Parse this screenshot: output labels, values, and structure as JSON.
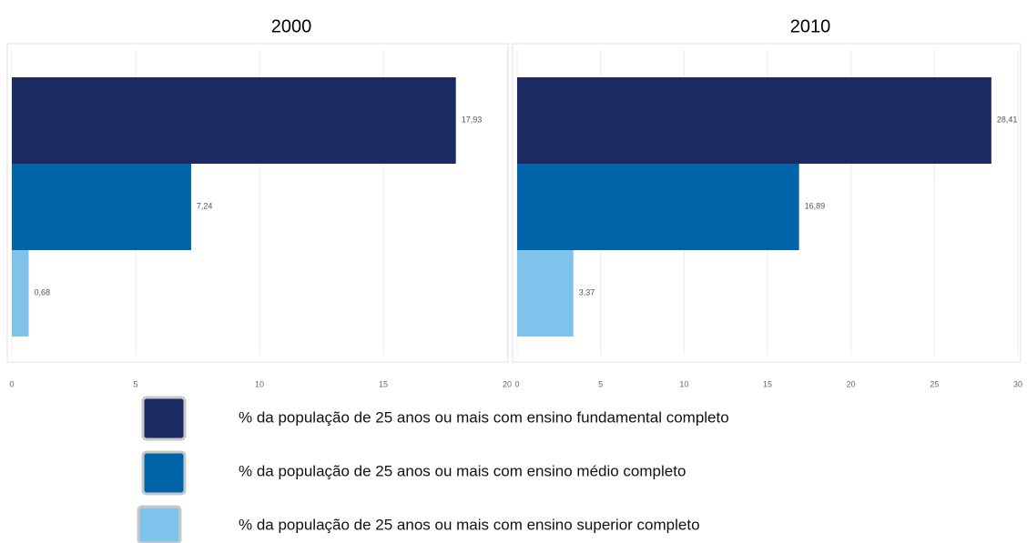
{
  "chart_data": [
    {
      "type": "bar",
      "orientation": "horizontal",
      "title": "2000",
      "values": [
        17.93,
        7.24,
        0.68
      ],
      "value_labels": [
        "17,93",
        "7,24",
        "0,68"
      ],
      "xlim": [
        0,
        20
      ],
      "xticks": [
        0,
        5,
        10,
        15,
        20
      ],
      "grid": true
    },
    {
      "type": "bar",
      "orientation": "horizontal",
      "title": "2010",
      "values": [
        28.41,
        16.89,
        3.37
      ],
      "value_labels": [
        "28,41",
        "16,89",
        "3,37"
      ],
      "xlim": [
        0,
        30
      ],
      "xticks": [
        0,
        5,
        10,
        15,
        20,
        25,
        30
      ],
      "grid": true
    }
  ],
  "legend": [
    {
      "name": "% da população de 25 anos ou mais com ensino fundamental completo",
      "color": "#1b2a63"
    },
    {
      "name": "% da população de 25 anos ou mais com ensino médio completo",
      "color": "#0065a8"
    },
    {
      "name": "% da população de 25 anos ou mais com ensino superior completo",
      "color": "#7fc3ec"
    }
  ]
}
